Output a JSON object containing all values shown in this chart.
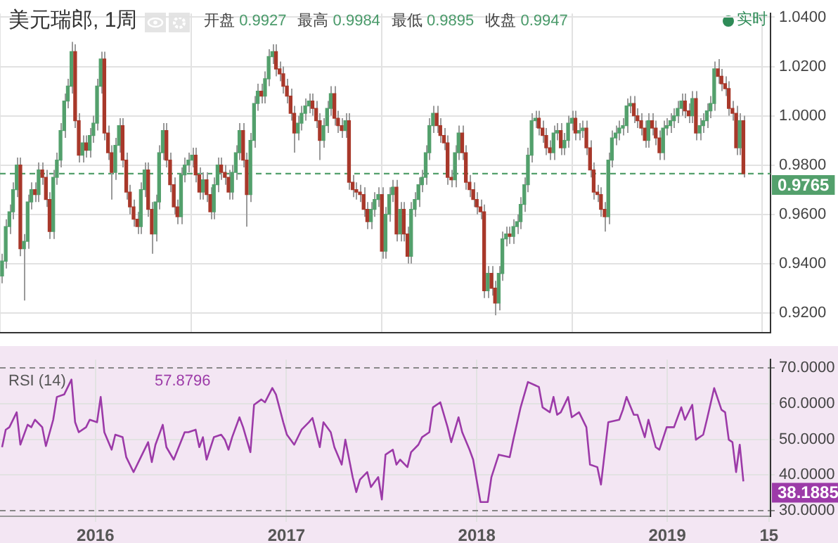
{
  "chart_data": [
    {
      "type": "candlestick",
      "title": "美元瑞郎, 1周",
      "annotations": [
        "开盘 0.9927",
        "最高 0.9984",
        "最低 0.9895",
        "收盘 0.9947",
        "实时"
      ],
      "x": [
        "2015-07-06",
        "2015-07-13",
        "2015-07-20",
        "2015-07-27",
        "2015-08-03",
        "2015-08-10",
        "2015-08-17",
        "2015-08-24",
        "2015-08-31",
        "2015-09-07",
        "2015-09-14",
        "2015-09-21",
        "2015-09-28",
        "2015-10-05",
        "2015-10-12",
        "2015-10-19",
        "2015-10-26",
        "2015-11-02",
        "2015-11-09",
        "2015-11-16",
        "2015-11-23",
        "2015-11-30",
        "2015-12-07",
        "2015-12-14",
        "2015-12-21",
        "2015-12-28",
        "2016-01-04",
        "2016-01-11",
        "2016-01-18",
        "2016-01-25",
        "2016-02-01",
        "2016-02-08",
        "2016-02-15",
        "2016-02-22",
        "2016-02-29",
        "2016-03-07",
        "2016-03-14",
        "2016-03-21",
        "2016-03-28",
        "2016-04-04",
        "2016-04-11",
        "2016-04-18",
        "2016-04-25",
        "2016-05-02",
        "2016-05-09",
        "2016-05-16",
        "2016-05-23",
        "2016-05-30",
        "2016-06-06",
        "2016-06-13",
        "2016-06-20",
        "2016-06-27",
        "2016-07-04",
        "2016-07-11",
        "2016-07-18",
        "2016-07-25",
        "2016-08-01",
        "2016-08-08",
        "2016-08-15",
        "2016-08-22",
        "2016-08-29",
        "2016-09-05",
        "2016-09-12",
        "2016-09-19",
        "2016-09-26",
        "2016-10-03",
        "2016-10-10",
        "2016-10-17",
        "2016-10-24",
        "2016-10-31",
        "2016-11-07",
        "2016-11-14",
        "2016-11-21",
        "2016-11-28",
        "2016-12-05",
        "2016-12-12",
        "2016-12-19",
        "2016-12-26",
        "2017-01-02",
        "2017-01-09",
        "2017-01-16",
        "2017-01-23",
        "2017-01-30",
        "2017-02-06",
        "2017-02-13",
        "2017-02-20",
        "2017-02-27",
        "2017-03-06",
        "2017-03-13",
        "2017-03-20",
        "2017-03-27",
        "2017-04-03",
        "2017-04-10",
        "2017-04-17",
        "2017-04-24",
        "2017-05-01",
        "2017-05-08",
        "2017-05-15",
        "2017-05-22",
        "2017-05-29",
        "2017-06-05",
        "2017-06-12",
        "2017-06-19",
        "2017-06-26",
        "2017-07-03",
        "2017-07-10",
        "2017-07-17",
        "2017-07-24",
        "2017-07-31",
        "2017-08-07",
        "2017-08-14",
        "2017-08-21",
        "2017-08-28",
        "2017-09-04",
        "2017-09-11",
        "2017-09-18",
        "2017-09-25",
        "2017-10-02",
        "2017-10-09",
        "2017-10-16",
        "2017-10-23",
        "2017-10-30",
        "2017-11-06",
        "2017-11-13",
        "2017-11-20",
        "2017-11-27",
        "2017-12-04",
        "2017-12-11",
        "2017-12-18",
        "2017-12-25",
        "2018-01-01",
        "2018-01-08",
        "2018-01-15",
        "2018-01-22",
        "2018-01-29",
        "2018-02-05",
        "2018-02-12",
        "2018-02-19",
        "2018-02-26",
        "2018-03-05",
        "2018-03-12",
        "2018-03-19",
        "2018-03-26",
        "2018-04-02",
        "2018-04-09",
        "2018-04-16",
        "2018-04-23",
        "2018-04-30",
        "2018-05-07",
        "2018-05-14",
        "2018-05-21",
        "2018-05-28",
        "2018-06-04",
        "2018-06-11",
        "2018-06-18",
        "2018-06-25",
        "2018-07-02",
        "2018-07-09",
        "2018-07-16",
        "2018-07-23",
        "2018-07-30",
        "2018-08-06",
        "2018-08-13",
        "2018-08-20",
        "2018-08-27",
        "2018-09-03",
        "2018-09-10",
        "2018-09-17",
        "2018-09-24",
        "2018-10-01",
        "2018-10-08",
        "2018-10-15",
        "2018-10-22",
        "2018-10-29",
        "2018-11-05",
        "2018-11-12",
        "2018-11-19",
        "2018-11-26",
        "2018-12-03",
        "2018-12-10",
        "2018-12-17",
        "2018-12-24",
        "2018-12-31",
        "2019-01-07",
        "2019-01-14",
        "2019-01-21",
        "2019-01-28",
        "2019-02-04",
        "2019-02-11",
        "2019-02-18",
        "2019-02-25",
        "2019-03-04",
        "2019-03-11",
        "2019-03-18",
        "2019-03-25",
        "2019-04-01",
        "2019-04-08",
        "2019-04-15",
        "2019-04-22",
        "2019-04-29",
        "2019-05-06",
        "2019-05-13",
        "2019-05-20",
        "2019-05-27"
      ],
      "ohlc": [
        [
          0.935,
          0.944,
          0.932,
          0.941
        ],
        [
          0.941,
          0.958,
          0.938,
          0.955
        ],
        [
          0.955,
          0.964,
          0.952,
          0.961
        ],
        [
          0.961,
          0.973,
          0.958,
          0.97
        ],
        [
          0.97,
          0.983,
          0.967,
          0.98
        ],
        [
          0.98,
          0.983,
          0.943,
          0.946
        ],
        [
          0.946,
          0.952,
          0.925,
          0.949
        ],
        [
          0.949,
          0.968,
          0.946,
          0.965
        ],
        [
          0.965,
          0.973,
          0.962,
          0.97
        ],
        [
          0.97,
          0.973,
          0.965,
          0.968
        ],
        [
          0.968,
          0.981,
          0.965,
          0.978
        ],
        [
          0.978,
          0.981,
          0.972,
          0.975
        ],
        [
          0.975,
          0.978,
          0.963,
          0.966
        ],
        [
          0.966,
          0.969,
          0.95,
          0.953
        ],
        [
          0.953,
          0.978,
          0.95,
          0.975
        ],
        [
          0.975,
          0.985,
          0.972,
          0.982
        ],
        [
          0.982,
          0.997,
          0.979,
          0.994
        ],
        [
          0.994,
          1.009,
          0.991,
          1.006
        ],
        [
          1.006,
          1.015,
          1.003,
          1.012
        ],
        [
          1.012,
          1.03,
          1.009,
          1.026
        ],
        [
          1.026,
          1.029,
          0.995,
          0.998
        ],
        [
          0.998,
          1.001,
          0.981,
          0.984
        ],
        [
          0.984,
          0.992,
          0.981,
          0.989
        ],
        [
          0.989,
          0.992,
          0.983,
          0.986
        ],
        [
          0.986,
          0.995,
          0.983,
          0.992
        ],
        [
          0.992,
          1.0,
          0.989,
          0.997
        ],
        [
          0.997,
          1.015,
          0.994,
          1.012
        ],
        [
          1.012,
          1.026,
          1.009,
          1.023
        ],
        [
          1.023,
          1.026,
          0.99,
          0.993
        ],
        [
          0.993,
          0.996,
          0.982,
          0.985
        ],
        [
          0.985,
          0.988,
          0.966,
          0.977
        ],
        [
          0.977,
          0.991,
          0.974,
          0.988
        ],
        [
          0.988,
          0.999,
          0.985,
          0.996
        ],
        [
          0.996,
          0.999,
          0.979,
          0.982
        ],
        [
          0.982,
          0.985,
          0.966,
          0.969
        ],
        [
          0.969,
          0.972,
          0.96,
          0.963
        ],
        [
          0.963,
          0.966,
          0.955,
          0.958
        ],
        [
          0.958,
          0.961,
          0.952,
          0.955
        ],
        [
          0.955,
          0.973,
          0.952,
          0.97
        ],
        [
          0.97,
          0.981,
          0.967,
          0.978
        ],
        [
          0.978,
          0.981,
          0.959,
          0.962
        ],
        [
          0.962,
          0.965,
          0.944,
          0.952
        ],
        [
          0.952,
          0.968,
          0.949,
          0.965
        ],
        [
          0.965,
          0.988,
          0.962,
          0.985
        ],
        [
          0.985,
          0.997,
          0.982,
          0.994
        ],
        [
          0.994,
          0.997,
          0.979,
          0.982
        ],
        [
          0.982,
          0.985,
          0.969,
          0.972
        ],
        [
          0.972,
          0.975,
          0.96,
          0.963
        ],
        [
          0.963,
          0.966,
          0.956,
          0.959
        ],
        [
          0.959,
          0.979,
          0.956,
          0.976
        ],
        [
          0.976,
          0.983,
          0.973,
          0.98
        ],
        [
          0.98,
          0.985,
          0.977,
          0.982
        ],
        [
          0.982,
          0.987,
          0.979,
          0.984
        ],
        [
          0.984,
          0.987,
          0.973,
          0.976
        ],
        [
          0.976,
          0.979,
          0.966,
          0.969
        ],
        [
          0.969,
          0.977,
          0.966,
          0.974
        ],
        [
          0.974,
          0.977,
          0.965,
          0.968
        ],
        [
          0.968,
          0.971,
          0.958,
          0.961
        ],
        [
          0.961,
          0.975,
          0.958,
          0.972
        ],
        [
          0.972,
          0.983,
          0.969,
          0.98
        ],
        [
          0.98,
          0.983,
          0.974,
          0.977
        ],
        [
          0.977,
          0.98,
          0.972,
          0.975
        ],
        [
          0.975,
          0.978,
          0.966,
          0.969
        ],
        [
          0.969,
          0.98,
          0.966,
          0.977
        ],
        [
          0.977,
          0.988,
          0.974,
          0.985
        ],
        [
          0.985,
          0.997,
          0.982,
          0.994
        ],
        [
          0.994,
          0.997,
          0.979,
          0.982
        ],
        [
          0.982,
          0.985,
          0.955,
          0.968
        ],
        [
          0.968,
          0.993,
          0.965,
          0.99
        ],
        [
          0.99,
          1.008,
          0.987,
          1.005
        ],
        [
          1.005,
          1.013,
          1.002,
          1.01
        ],
        [
          1.01,
          1.013,
          1.005,
          1.008
        ],
        [
          1.008,
          1.018,
          1.005,
          1.015
        ],
        [
          1.015,
          1.027,
          1.012,
          1.024
        ],
        [
          1.024,
          1.029,
          1.021,
          1.026
        ],
        [
          1.026,
          1.029,
          1.016,
          1.019
        ],
        [
          1.019,
          1.022,
          1.014,
          1.017
        ],
        [
          1.017,
          1.02,
          1.009,
          1.012
        ],
        [
          1.012,
          1.015,
          1.005,
          1.008
        ],
        [
          1.008,
          1.011,
          0.998,
          1.001
        ],
        [
          1.001,
          1.004,
          0.985,
          0.993
        ],
        [
          0.993,
          1.0,
          0.99,
          0.997
        ],
        [
          0.997,
          1.004,
          0.994,
          1.001
        ],
        [
          1.001,
          1.007,
          0.998,
          1.004
        ],
        [
          1.004,
          1.009,
          1.001,
          1.006
        ],
        [
          1.006,
          1.009,
          1.0,
          1.003
        ],
        [
          1.003,
          1.006,
          0.995,
          0.998
        ],
        [
          0.998,
          1.001,
          0.982,
          0.99
        ],
        [
          0.99,
          0.999,
          0.987,
          0.996
        ],
        [
          0.996,
          1.006,
          0.993,
          1.003
        ],
        [
          1.003,
          1.012,
          1.0,
          1.009
        ],
        [
          1.009,
          1.012,
          0.996,
          0.999
        ],
        [
          0.999,
          1.002,
          0.993,
          0.996
        ],
        [
          0.996,
          0.999,
          0.991,
          0.994
        ],
        [
          0.994,
          1.001,
          0.991,
          0.998
        ],
        [
          0.998,
          1.001,
          0.97,
          0.973
        ],
        [
          0.973,
          0.976,
          0.967,
          0.97
        ],
        [
          0.97,
          0.973,
          0.966,
          0.969
        ],
        [
          0.969,
          0.972,
          0.965,
          0.968
        ],
        [
          0.968,
          0.971,
          0.959,
          0.962
        ],
        [
          0.962,
          0.965,
          0.954,
          0.957
        ],
        [
          0.957,
          0.965,
          0.954,
          0.962
        ],
        [
          0.962,
          0.969,
          0.959,
          0.966
        ],
        [
          0.966,
          0.971,
          0.963,
          0.968
        ],
        [
          0.968,
          0.971,
          0.942,
          0.945
        ],
        [
          0.945,
          0.963,
          0.942,
          0.96
        ],
        [
          0.96,
          0.971,
          0.957,
          0.968
        ],
        [
          0.968,
          0.974,
          0.965,
          0.971
        ],
        [
          0.971,
          0.974,
          0.949,
          0.952
        ],
        [
          0.952,
          0.965,
          0.949,
          0.962
        ],
        [
          0.962,
          0.965,
          0.949,
          0.952
        ],
        [
          0.952,
          0.955,
          0.94,
          0.943
        ],
        [
          0.943,
          0.965,
          0.94,
          0.962
        ],
        [
          0.962,
          0.969,
          0.959,
          0.966
        ],
        [
          0.966,
          0.975,
          0.963,
          0.972
        ],
        [
          0.972,
          0.978,
          0.969,
          0.975
        ],
        [
          0.975,
          0.988,
          0.972,
          0.985
        ],
        [
          0.985,
          0.999,
          0.982,
          0.996
        ],
        [
          0.996,
          1.004,
          0.993,
          1.001
        ],
        [
          1.001,
          1.004,
          0.993,
          0.996
        ],
        [
          0.996,
          0.999,
          0.989,
          0.992
        ],
        [
          0.992,
          0.995,
          0.986,
          0.989
        ],
        [
          0.989,
          0.992,
          0.972,
          0.975
        ],
        [
          0.975,
          0.978,
          0.971,
          0.974
        ],
        [
          0.974,
          0.988,
          0.971,
          0.985
        ],
        [
          0.985,
          0.996,
          0.982,
          0.993
        ],
        [
          0.993,
          0.996,
          0.982,
          0.985
        ],
        [
          0.985,
          0.988,
          0.97,
          0.973
        ],
        [
          0.973,
          0.976,
          0.967,
          0.97
        ],
        [
          0.97,
          0.973,
          0.963,
          0.966
        ],
        [
          0.966,
          0.969,
          0.96,
          0.963
        ],
        [
          0.963,
          0.966,
          0.958,
          0.961
        ],
        [
          0.961,
          0.964,
          0.926,
          0.929
        ],
        [
          0.929,
          0.939,
          0.926,
          0.936
        ],
        [
          0.936,
          0.939,
          0.927,
          0.93
        ],
        [
          0.93,
          0.933,
          0.919,
          0.924
        ],
        [
          0.924,
          0.939,
          0.921,
          0.936
        ],
        [
          0.936,
          0.953,
          0.933,
          0.95
        ],
        [
          0.95,
          0.955,
          0.947,
          0.952
        ],
        [
          0.952,
          0.955,
          0.948,
          0.951
        ],
        [
          0.951,
          0.958,
          0.948,
          0.955
        ],
        [
          0.955,
          0.96,
          0.952,
          0.957
        ],
        [
          0.957,
          0.967,
          0.954,
          0.964
        ],
        [
          0.964,
          0.975,
          0.961,
          0.972
        ],
        [
          0.972,
          0.987,
          0.969,
          0.984
        ],
        [
          0.984,
          1.001,
          0.981,
          0.998
        ],
        [
          0.998,
          1.002,
          0.995,
          0.999
        ],
        [
          0.999,
          1.002,
          0.992,
          0.995
        ],
        [
          0.995,
          0.998,
          0.989,
          0.992
        ],
        [
          0.992,
          0.995,
          0.984,
          0.987
        ],
        [
          0.987,
          0.99,
          0.982,
          0.985
        ],
        [
          0.985,
          0.996,
          0.982,
          0.993
        ],
        [
          0.993,
          0.997,
          0.99,
          0.994
        ],
        [
          0.994,
          0.997,
          0.984,
          0.987
        ],
        [
          0.987,
          0.993,
          0.984,
          0.99
        ],
        [
          0.99,
          1.0,
          0.987,
          0.997
        ],
        [
          0.997,
          1.002,
          0.994,
          0.999
        ],
        [
          0.999,
          1.002,
          0.99,
          0.993
        ],
        [
          0.993,
          0.997,
          0.99,
          0.994
        ],
        [
          0.994,
          0.998,
          0.991,
          0.995
        ],
        [
          0.995,
          0.998,
          0.984,
          0.987
        ],
        [
          0.987,
          0.99,
          0.975,
          0.978
        ],
        [
          0.978,
          0.981,
          0.966,
          0.969
        ],
        [
          0.969,
          0.972,
          0.965,
          0.968
        ],
        [
          0.968,
          0.971,
          0.959,
          0.962
        ],
        [
          0.962,
          0.965,
          0.953,
          0.959
        ],
        [
          0.959,
          0.985,
          0.956,
          0.982
        ],
        [
          0.982,
          0.994,
          0.979,
          0.991
        ],
        [
          0.991,
          0.996,
          0.988,
          0.993
        ],
        [
          0.993,
          0.998,
          0.99,
          0.995
        ],
        [
          0.995,
          0.999,
          0.992,
          0.996
        ],
        [
          0.996,
          1.007,
          0.993,
          1.004
        ],
        [
          1.004,
          1.008,
          1.001,
          1.005
        ],
        [
          1.005,
          1.008,
          0.997,
          1.0
        ],
        [
          1.0,
          1.003,
          0.995,
          0.998
        ],
        [
          0.998,
          1.001,
          0.992,
          0.995
        ],
        [
          0.995,
          0.998,
          0.987,
          0.99
        ],
        [
          0.99,
          1.001,
          0.987,
          0.998
        ],
        [
          0.998,
          1.001,
          0.992,
          0.995
        ],
        [
          0.995,
          0.998,
          0.988,
          0.991
        ],
        [
          0.991,
          0.994,
          0.982,
          0.985
        ],
        [
          0.985,
          0.998,
          0.982,
          0.995
        ],
        [
          0.995,
          0.999,
          0.992,
          0.996
        ],
        [
          0.996,
          1.001,
          0.993,
          0.998
        ],
        [
          0.998,
          1.003,
          0.995,
          1.0
        ],
        [
          1.0,
          1.006,
          0.997,
          1.003
        ],
        [
          1.003,
          1.009,
          1.0,
          1.006
        ],
        [
          1.006,
          1.009,
          0.999,
          1.002
        ],
        [
          1.002,
          1.005,
          0.997,
          1.0
        ],
        [
          1.0,
          1.01,
          0.997,
          1.007
        ],
        [
          1.007,
          1.01,
          0.99,
          0.993
        ],
        [
          0.993,
          0.999,
          0.99,
          0.996
        ],
        [
          0.996,
          1.001,
          0.993,
          0.998
        ],
        [
          0.998,
          1.005,
          0.995,
          1.002
        ],
        [
          1.002,
          1.008,
          0.999,
          1.005
        ],
        [
          1.005,
          1.022,
          1.002,
          1.019
        ],
        [
          1.019,
          1.023,
          1.013,
          1.016
        ],
        [
          1.016,
          1.019,
          1.01,
          1.013
        ],
        [
          1.013,
          1.016,
          1.008,
          1.011
        ],
        [
          1.011,
          1.014,
          1.0,
          1.003
        ],
        [
          1.003,
          1.006,
          0.998,
          1.001
        ],
        [
          1.001,
          1.004,
          0.984,
          0.987
        ],
        [
          0.987,
          1.001,
          0.984,
          0.998
        ],
        [
          0.998,
          1.0,
          0.975,
          0.9765
        ]
      ],
      "colors": [
        "#53a06c",
        "#53a06c",
        "#53a06c",
        "#53a06c",
        "#53a06c",
        "#a8382a",
        "#53a06c",
        "#53a06c",
        "#53a06c",
        "#a8382a",
        "#53a06c",
        "#a8382a",
        "#a8382a",
        "#a8382a",
        "#53a06c",
        "#53a06c",
        "#53a06c",
        "#53a06c",
        "#53a06c",
        "#53a06c",
        "#a8382a",
        "#a8382a",
        "#53a06c",
        "#a8382a",
        "#53a06c",
        "#53a06c",
        "#53a06c",
        "#53a06c",
        "#a8382a",
        "#a8382a",
        "#a8382a",
        "#53a06c",
        "#53a06c",
        "#a8382a",
        "#a8382a",
        "#a8382a",
        "#a8382a",
        "#a8382a",
        "#53a06c",
        "#53a06c",
        "#a8382a",
        "#a8382a",
        "#53a06c",
        "#53a06c",
        "#53a06c",
        "#a8382a",
        "#a8382a",
        "#a8382a",
        "#a8382a",
        "#53a06c",
        "#53a06c",
        "#53a06c",
        "#53a06c",
        "#a8382a",
        "#a8382a",
        "#53a06c",
        "#a8382a",
        "#a8382a",
        "#53a06c",
        "#53a06c",
        "#a8382a",
        "#a8382a",
        "#a8382a",
        "#53a06c",
        "#53a06c",
        "#53a06c",
        "#a8382a",
        "#a8382a",
        "#53a06c",
        "#53a06c",
        "#53a06c",
        "#a8382a",
        "#53a06c",
        "#53a06c",
        "#53a06c",
        "#a8382a",
        "#a8382a",
        "#a8382a",
        "#a8382a",
        "#a8382a",
        "#a8382a",
        "#53a06c",
        "#53a06c",
        "#53a06c",
        "#53a06c",
        "#a8382a",
        "#a8382a",
        "#a8382a",
        "#53a06c",
        "#53a06c",
        "#53a06c",
        "#a8382a",
        "#a8382a",
        "#a8382a",
        "#53a06c",
        "#a8382a",
        "#a8382a",
        "#a8382a",
        "#a8382a",
        "#a8382a",
        "#a8382a",
        "#53a06c",
        "#53a06c",
        "#53a06c",
        "#a8382a",
        "#53a06c",
        "#53a06c",
        "#53a06c",
        "#a8382a",
        "#53a06c",
        "#a8382a",
        "#a8382a",
        "#53a06c",
        "#53a06c",
        "#53a06c",
        "#53a06c",
        "#53a06c",
        "#53a06c",
        "#53a06c",
        "#a8382a",
        "#a8382a",
        "#a8382a",
        "#a8382a",
        "#a8382a",
        "#53a06c",
        "#53a06c",
        "#a8382a",
        "#a8382a",
        "#a8382a",
        "#a8382a",
        "#a8382a",
        "#a8382a",
        "#a8382a",
        "#53a06c",
        "#a8382a",
        "#a8382a",
        "#53a06c",
        "#53a06c",
        "#53a06c",
        "#a8382a",
        "#53a06c",
        "#53a06c",
        "#53a06c",
        "#53a06c",
        "#53a06c",
        "#53a06c",
        "#53a06c",
        "#a8382a",
        "#a8382a",
        "#a8382a",
        "#a8382a",
        "#53a06c",
        "#53a06c",
        "#a8382a",
        "#53a06c",
        "#53a06c",
        "#53a06c",
        "#a8382a",
        "#53a06c",
        "#53a06c",
        "#a8382a",
        "#a8382a",
        "#a8382a",
        "#a8382a",
        "#a8382a",
        "#a8382a",
        "#53a06c",
        "#53a06c",
        "#53a06c",
        "#53a06c",
        "#53a06c",
        "#53a06c",
        "#53a06c",
        "#a8382a",
        "#a8382a",
        "#a8382a",
        "#a8382a",
        "#53a06c",
        "#a8382a",
        "#a8382a",
        "#a8382a",
        "#53a06c",
        "#53a06c",
        "#53a06c",
        "#53a06c",
        "#53a06c",
        "#53a06c",
        "#a8382a",
        "#a8382a",
        "#53a06c",
        "#a8382a",
        "#53a06c",
        "#53a06c",
        "#53a06c",
        "#53a06c",
        "#53a06c",
        "#a8382a",
        "#a8382a",
        "#a8382a",
        "#a8382a",
        "#a8382a",
        "#a8382a",
        "#53a06c",
        "#a8382a"
      ],
      "xlim": [
        "2015-07-02",
        "2019-07-18"
      ],
      "xticks": [
        "2016",
        "2017",
        "2018",
        "2019"
      ],
      "ylim": [
        0.912,
        1.0415
      ],
      "yticks": [
        {
          "value": 0.92,
          "label": "0.9200"
        },
        {
          "value": 0.94,
          "label": "0.9400"
        },
        {
          "value": 0.96,
          "label": "0.9600"
        },
        {
          "value": 0.98,
          "label": "0.9800"
        },
        {
          "value": 1.0,
          "label": "1.0000"
        },
        {
          "value": 1.02,
          "label": "1.0200"
        },
        {
          "value": 1.04,
          "label": "1.0400"
        }
      ],
      "tick_labels": "y",
      "grid": true,
      "ref_lines": [
        {
          "axis": "y",
          "value": 0.9765,
          "label": "0.9765",
          "color": "#53a06c",
          "line_style": "dashed"
        }
      ]
    },
    {
      "type": "line",
      "title": "RSI (14)",
      "annotations": [
        "57.8796",
        "38.1885"
      ],
      "color": "#9c3aa8",
      "x": [
        "2015-07-06",
        "2015-07-13",
        "2015-07-20",
        "2015-08-03",
        "2015-08-10",
        "2015-08-24",
        "2015-08-31",
        "2015-09-07",
        "2015-09-21",
        "2015-09-28",
        "2015-10-12",
        "2015-10-19",
        "2015-11-02",
        "2015-11-16",
        "2015-11-23",
        "2015-11-30",
        "2015-12-14",
        "2015-12-21",
        "2016-01-04",
        "2016-01-11",
        "2016-01-18",
        "2016-02-01",
        "2016-02-08",
        "2016-02-22",
        "2016-02-29",
        "2016-03-14",
        "2016-03-28",
        "2016-04-11",
        "2016-04-18",
        "2016-04-25",
        "2016-05-09",
        "2016-05-16",
        "2016-05-30",
        "2016-06-20",
        "2016-06-27",
        "2016-07-11",
        "2016-07-18",
        "2016-07-25",
        "2016-08-01",
        "2016-08-15",
        "2016-08-29",
        "2016-09-05",
        "2016-09-12",
        "2016-09-19",
        "2016-10-03",
        "2016-10-10",
        "2016-10-24",
        "2016-10-31",
        "2016-11-14",
        "2016-11-21",
        "2016-12-05",
        "2016-12-12",
        "2016-12-26",
        "2017-01-02",
        "2017-01-16",
        "2017-01-30",
        "2017-02-13",
        "2017-02-20",
        "2017-03-06",
        "2017-03-13",
        "2017-03-27",
        "2017-04-03",
        "2017-04-17",
        "2017-04-24",
        "2017-05-08",
        "2017-05-15",
        "2017-05-22",
        "2017-06-05",
        "2017-06-12",
        "2017-06-26",
        "2017-07-03",
        "2017-07-10",
        "2017-07-24",
        "2017-07-31",
        "2017-08-07",
        "2017-08-21",
        "2017-08-28",
        "2017-09-11",
        "2017-09-18",
        "2017-10-02",
        "2017-10-09",
        "2017-10-23",
        "2017-11-06",
        "2017-11-13",
        "2017-11-27",
        "2017-12-04",
        "2017-12-18",
        "2017-12-25",
        "2018-01-08",
        "2018-01-22",
        "2018-01-29",
        "2018-02-12",
        "2018-03-05",
        "2018-03-12",
        "2018-03-26",
        "2018-04-09",
        "2018-04-30",
        "2018-05-07",
        "2018-05-21",
        "2018-05-28",
        "2018-06-04",
        "2018-06-11",
        "2018-06-25",
        "2018-07-02",
        "2018-07-16",
        "2018-07-30",
        "2018-08-06",
        "2018-08-20",
        "2018-08-27",
        "2018-09-10",
        "2018-10-01",
        "2018-10-08",
        "2018-10-15",
        "2018-10-29",
        "2018-11-05",
        "2018-11-19",
        "2018-11-26",
        "2018-12-10",
        "2018-12-17",
        "2018-12-31",
        "2019-01-14",
        "2019-01-28",
        "2019-02-04",
        "2019-02-18",
        "2019-02-25",
        "2019-03-11",
        "2019-03-18",
        "2019-04-01",
        "2019-04-15",
        "2019-04-22",
        "2019-04-29",
        "2019-05-06",
        "2019-05-13",
        "2019-05-20",
        "2019-05-27"
      ],
      "values": [
        47.8,
        52.7,
        53.4,
        57.6,
        48.5,
        54.1,
        53.4,
        55.5,
        53.4,
        48.1,
        55.5,
        61.9,
        62.6,
        66.8,
        54.8,
        52.0,
        53.4,
        55.5,
        54.8,
        61.9,
        52.0,
        47.1,
        51.3,
        50.6,
        45.0,
        40.8,
        45.0,
        49.2,
        43.6,
        48.5,
        54.1,
        47.8,
        44.3,
        52.0,
        52.0,
        52.7,
        47.8,
        50.6,
        44.3,
        50.6,
        51.3,
        49.9,
        47.1,
        50.6,
        56.2,
        53.4,
        46.4,
        59.7,
        61.2,
        60.4,
        64.4,
        62.6,
        54.8,
        51.3,
        48.5,
        52.7,
        54.8,
        56.0,
        47.8,
        54.8,
        52.0,
        47.8,
        42.9,
        49.9,
        39.4,
        35.2,
        38.7,
        40.8,
        36.6,
        39.4,
        33.1,
        45.7,
        47.1,
        42.9,
        44.3,
        42.2,
        46.4,
        48.5,
        50.6,
        52.0,
        59.0,
        60.4,
        53.4,
        49.2,
        56.2,
        52.0,
        47.1,
        44.3,
        32.4,
        32.4,
        39.4,
        45.7,
        45.0,
        49.9,
        59.0,
        66.1,
        64.7,
        59.0,
        57.6,
        61.9,
        56.9,
        57.6,
        61.9,
        56.2,
        57.6,
        53.4,
        42.9,
        42.2,
        37.3,
        54.8,
        55.5,
        58.3,
        61.9,
        56.9,
        56.9,
        50.6,
        55.5,
        47.8,
        47.1,
        53.4,
        53.4,
        59.0,
        55.5,
        59.7,
        49.9,
        51.3,
        55.5,
        64.4,
        58.3,
        57.6,
        49.9,
        49.2,
        40.8,
        48.5,
        38.2
      ],
      "xlim": [
        "2015-07-02",
        "2019-07-18"
      ],
      "xticks": [
        "2016",
        "2017",
        "2018",
        "2019",
        {
          "value": "2019-07-15",
          "label": "15"
        }
      ],
      "ylim": [
        28.4,
        72.4
      ],
      "yticks": [
        {
          "value": 30,
          "label": "30.0000"
        },
        {
          "value": 40,
          "label": "40.0000"
        },
        {
          "value": 50,
          "label": "50.0000"
        },
        {
          "value": 60,
          "label": "60.0000"
        },
        {
          "value": 70,
          "label": "70.0000"
        }
      ],
      "grid": true
    }
  ]
}
